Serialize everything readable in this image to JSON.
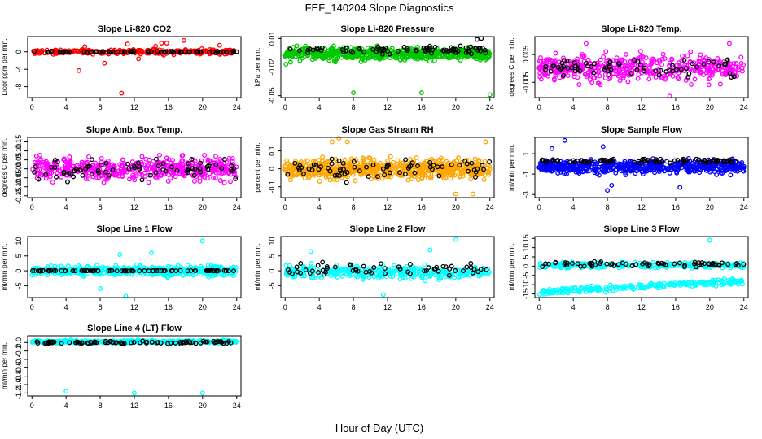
{
  "figure": {
    "title": "FEF_140204  Slope Diagnostics",
    "xlabel": "Hour of Day (UTC)"
  },
  "chart_data": [
    {
      "id": "li820_co2",
      "type": "scatter",
      "title": "Slope Li-820 CO2",
      "ylabel": "Licor ppm per min.",
      "xlim": [
        -0.5,
        24.5
      ],
      "ylim": [
        -10.5,
        3.5
      ],
      "xticks": [
        0,
        4,
        8,
        12,
        16,
        20,
        24
      ],
      "yticks": [
        {
          "v": 0,
          "t": "0"
        },
        {
          "v": -4,
          "t": "-4"
        },
        {
          "v": -8,
          "t": "-8"
        }
      ],
      "series": [
        {
          "color": "#ff0000",
          "n": 300,
          "spread": 0.5,
          "mean": 0,
          "outliers": [
            [
              5.5,
              -4.3
            ],
            [
              8.5,
              -2.6
            ],
            [
              10.5,
              -9.5
            ],
            [
              12.5,
              -1.6
            ],
            [
              14.5,
              1.3
            ],
            [
              15.2,
              2.0
            ],
            [
              15.8,
              2.0
            ],
            [
              17.8,
              2.6
            ],
            [
              22.0,
              1.5
            ],
            [
              11.2,
              1.8
            ],
            [
              6.2,
              1.2
            ]
          ]
        },
        {
          "color": "#000000",
          "n": 70,
          "spread": 0.2,
          "mean": 0,
          "outliers": []
        }
      ]
    },
    {
      "id": "li820_pressure",
      "type": "scatter",
      "title": "Slope Li-820 Pressure",
      "ylabel": "kPa per min.",
      "xlim": [
        -0.5,
        24.5
      ],
      "ylim": [
        -0.052,
        0.012
      ],
      "xticks": [
        0,
        4,
        8,
        12,
        16,
        20,
        24
      ],
      "yticks": [
        {
          "v": 0.01,
          "t": "0.01"
        },
        {
          "v": -0.02,
          "t": "-0.02"
        },
        {
          "v": -0.05,
          "t": "-0.05"
        }
      ],
      "series": [
        {
          "color": "#00c800",
          "n": 700,
          "spread": 0.006,
          "mean": -0.006,
          "outliers": [
            [
              8.0,
              -0.047
            ],
            [
              16.0,
              -0.047
            ],
            [
              24.0,
              -0.049
            ],
            [
              0.1,
              -0.017
            ]
          ]
        },
        {
          "color": "#000000",
          "n": 80,
          "spread": 0.004,
          "mean": -0.002,
          "outliers": [
            [
              23.0,
              0.01
            ],
            [
              22.5,
              0.009
            ]
          ]
        }
      ]
    },
    {
      "id": "li820_temp",
      "type": "scatter",
      "title": "Slope Li-820 Temp.",
      "ylabel": "degrees C per min.",
      "xlim": [
        -0.5,
        24.5
      ],
      "ylim": [
        -0.0105,
        0.0115
      ],
      "xticks": [
        0,
        4,
        8,
        12,
        16,
        20,
        24
      ],
      "yticks": [
        {
          "v": 0.005,
          "t": "0.005"
        },
        {
          "v": -0.005,
          "t": "-0.005"
        }
      ],
      "series": [
        {
          "color": "#ff00ff",
          "n": 450,
          "spread": 0.0045,
          "mean": 0,
          "outliers": [
            [
              15.3,
              -0.01
            ],
            [
              22.3,
              0.009
            ],
            [
              5.5,
              0.009
            ]
          ]
        },
        {
          "color": "#000000",
          "n": 70,
          "spread": 0.003,
          "mean": 0,
          "outliers": []
        }
      ]
    },
    {
      "id": "amb_box_temp",
      "type": "scatter",
      "title": "Slope Amb. Box Temp.",
      "ylabel": "degrees C per min.",
      "xlim": [
        -0.5,
        24.5
      ],
      "ylim": [
        -0.16,
        0.175
      ],
      "xticks": [
        0,
        4,
        8,
        12,
        16,
        20,
        24
      ],
      "yticks": [
        {
          "v": 0.15,
          "t": "0.15"
        },
        {
          "v": 0.1,
          "t": "0.10"
        },
        {
          "v": 0.05,
          "t": "0.05"
        },
        {
          "v": 0,
          "t": "0.00"
        },
        {
          "v": -0.05,
          "t": "-0.05"
        },
        {
          "v": -0.1,
          "t": "-0.10"
        },
        {
          "v": -0.15,
          "t": "-0.15"
        }
      ],
      "series": [
        {
          "color": "#ff00ff",
          "n": 480,
          "spread": 0.06,
          "mean": 0,
          "outliers": []
        },
        {
          "color": "#000000",
          "n": 75,
          "spread": 0.05,
          "mean": 0,
          "outliers": []
        }
      ]
    },
    {
      "id": "gas_stream_rh",
      "type": "scatter",
      "title": "Slope Gas Stream RH",
      "ylabel": "percent per min.",
      "xlim": [
        -0.5,
        24.5
      ],
      "ylim": [
        -0.16,
        0.175
      ],
      "xticks": [
        0,
        4,
        8,
        12,
        16,
        20,
        24
      ],
      "yticks": [
        {
          "v": 0.1,
          "t": "0.1"
        },
        {
          "v": 0,
          "t": "0"
        },
        {
          "v": -0.1,
          "t": "-0.1"
        }
      ],
      "series": [
        {
          "color": "#ffa500",
          "n": 650,
          "spread": 0.05,
          "mean": 0,
          "outliers": [
            [
              5.5,
              0.15
            ],
            [
              6.3,
              0.17
            ],
            [
              7.3,
              0.15
            ],
            [
              20.0,
              -0.14
            ],
            [
              22.0,
              -0.14
            ],
            [
              23.5,
              0.15
            ]
          ]
        },
        {
          "color": "#000000",
          "n": 70,
          "spread": 0.05,
          "mean": 0,
          "outliers": []
        }
      ]
    },
    {
      "id": "sample_flow",
      "type": "scatter",
      "title": "Slope Sample Flow",
      "ylabel": "ml/min per min.",
      "xlim": [
        -0.5,
        24.5
      ],
      "ylim": [
        -3.3,
        2.6
      ],
      "xticks": [
        0,
        4,
        8,
        12,
        16,
        20,
        24
      ],
      "yticks": [
        {
          "v": 1,
          "t": "1"
        },
        {
          "v": -1,
          "t": "-1"
        },
        {
          "v": -3,
          "t": "-3"
        }
      ],
      "series": [
        {
          "color": "#0000ff",
          "n": 550,
          "spread": 0.6,
          "mean": -0.3,
          "outliers": [
            [
              3.0,
              2.3
            ],
            [
              1.5,
              1.5
            ],
            [
              7.5,
              1.7
            ],
            [
              8.0,
              -2.6
            ],
            [
              8.5,
              -2.1
            ],
            [
              16.5,
              -2.3
            ]
          ]
        },
        {
          "color": "#000000",
          "n": 80,
          "spread": 0.2,
          "mean": 0.3,
          "outliers": []
        }
      ]
    },
    {
      "id": "line1_flow",
      "type": "scatter",
      "title": "Slope Line 1 Flow",
      "ylabel": "ml/min per min.",
      "xlim": [
        -0.5,
        24.5
      ],
      "ylim": [
        -9,
        11.5
      ],
      "xticks": [
        0,
        4,
        8,
        12,
        16,
        20,
        24
      ],
      "yticks": [
        {
          "v": 10,
          "t": "10"
        },
        {
          "v": 5,
          "t": "5"
        },
        {
          "v": 0,
          "t": "0"
        },
        {
          "v": -5,
          "t": "-5"
        }
      ],
      "series": [
        {
          "color": "#00ffff",
          "n": 450,
          "spread": 1.6,
          "mean": 0,
          "outliers": [
            [
              20.0,
              10.0
            ],
            [
              8.0,
              -6.0
            ],
            [
              11.0,
              -8.5
            ],
            [
              14.0,
              6.0
            ],
            [
              10.3,
              5.5
            ]
          ]
        },
        {
          "color": "#000000",
          "n": 80,
          "spread": 0.1,
          "mean": 0,
          "outliers": []
        }
      ]
    },
    {
      "id": "line2_flow",
      "type": "scatter",
      "title": "Slope Line 2 Flow",
      "ylabel": "ml/min per min.",
      "xlim": [
        -0.5,
        24.5
      ],
      "ylim": [
        -9,
        11.5
      ],
      "xticks": [
        0,
        4,
        8,
        12,
        16,
        20,
        24
      ],
      "yticks": [
        {
          "v": 10,
          "t": "10"
        },
        {
          "v": 5,
          "t": "5"
        },
        {
          "v": 0,
          "t": "0"
        },
        {
          "v": -5,
          "t": "-5"
        }
      ],
      "series": [
        {
          "color": "#00ffff",
          "n": 350,
          "spread": 2.0,
          "mean": -0.5,
          "outliers": [
            [
              20.0,
              10.5
            ],
            [
              17.0,
              7.0
            ],
            [
              11.5,
              -8.0
            ],
            [
              3.0,
              6.5
            ]
          ]
        },
        {
          "color": "#000000",
          "n": 60,
          "spread": 2.0,
          "mean": 0.5,
          "outliers": []
        }
      ]
    },
    {
      "id": "line3_flow",
      "type": "scatter",
      "title": "Slope Line 3 Flow",
      "ylabel": "ml/min per min.",
      "xlim": [
        -0.5,
        24.5
      ],
      "ylim": [
        -17,
        16
      ],
      "xticks": [
        0,
        4,
        8,
        12,
        16,
        20,
        24
      ],
      "yticks": [
        {
          "v": 15,
          "t": "15"
        },
        {
          "v": 10,
          "t": "10"
        },
        {
          "v": 5,
          "t": "5"
        },
        {
          "v": 0,
          "t": "0"
        },
        {
          "v": -5,
          "t": "-5"
        },
        {
          "v": -10,
          "t": "-10"
        },
        {
          "v": -15,
          "t": "-15"
        }
      ],
      "series": [
        {
          "color": "#00ffff",
          "n": 250,
          "spread": 1.5,
          "mean": 0.5,
          "outliers": [
            [
              20.0,
              14.0
            ]
          ]
        },
        {
          "color": "#00ffff",
          "n": 250,
          "spread": 1.5,
          "mean": -11,
          "slope": 0.25,
          "outliers": []
        },
        {
          "color": "#000000",
          "n": 70,
          "spread": 1.2,
          "mean": 1.0,
          "outliers": []
        }
      ]
    },
    {
      "id": "line4_flow",
      "type": "scatter",
      "title": "Slope Line 4 (LT) Flow",
      "ylabel": "ml/min per min.",
      "xlim": [
        -0.5,
        24.5
      ],
      "ylim": [
        -1.27,
        0.16
      ],
      "xticks": [
        0,
        4,
        8,
        12,
        16,
        20,
        24
      ],
      "yticks": [
        {
          "v": 0,
          "t": "0.0"
        },
        {
          "v": -0.2,
          "t": "-0.2"
        },
        {
          "v": -0.4,
          "t": "-0.4"
        },
        {
          "v": -0.6,
          "t": "-0.6"
        },
        {
          "v": -0.8,
          "t": "-0.8"
        },
        {
          "v": -1.0,
          "t": "-1.0"
        },
        {
          "v": -1.2,
          "t": "-1.2"
        }
      ],
      "series": [
        {
          "color": "#00ffff",
          "n": 350,
          "spread": 0.03,
          "mean": 0.02,
          "outliers": [
            [
              4.0,
              -1.16
            ],
            [
              12.0,
              -1.2
            ],
            [
              20.0,
              -1.2
            ]
          ]
        },
        {
          "color": "#000000",
          "n": 80,
          "spread": 0.03,
          "mean": 0.0,
          "outliers": []
        }
      ]
    }
  ]
}
